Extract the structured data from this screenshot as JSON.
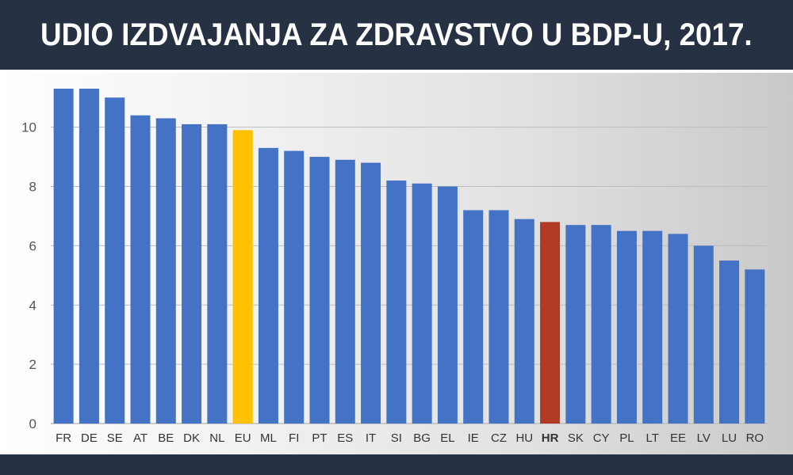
{
  "title": "UDIO IZDVAJANJA ZA ZDRAVSTVO U BDP-U, 2017.",
  "colors": {
    "default_bar": "#4472c4",
    "eu_bar": "#ffc000",
    "hr_bar": "#b03a24",
    "gridline": "#bdbdbd"
  },
  "chart_data": {
    "type": "bar",
    "title": "UDIO IZDVAJANJA ZA ZDRAVSTVO U BDP-U, 2017.",
    "xlabel": "",
    "ylabel": "",
    "ylim": [
      0,
      11.4
    ],
    "yticks": [
      0,
      2,
      4,
      6,
      8,
      10
    ],
    "grid": true,
    "legend": "none",
    "categories": [
      "FR",
      "DE",
      "SE",
      "AT",
      "BE",
      "DK",
      "NL",
      "EU",
      "ML",
      "FI",
      "PT",
      "ES",
      "IT",
      "SI",
      "BG",
      "EL",
      "IE",
      "CZ",
      "HU",
      "HR",
      "SK",
      "CY",
      "PL",
      "LT",
      "EE",
      "LV",
      "LU",
      "RO"
    ],
    "values": [
      11.3,
      11.3,
      11.0,
      10.4,
      10.3,
      10.1,
      10.1,
      9.9,
      9.3,
      9.2,
      9.0,
      8.9,
      8.8,
      8.2,
      8.1,
      8.0,
      7.2,
      7.2,
      6.9,
      6.8,
      6.7,
      6.7,
      6.5,
      6.5,
      6.4,
      6.0,
      5.5,
      5.2
    ],
    "highlight": {
      "EU": "#ffc000",
      "HR": "#b03a24"
    },
    "bold_labels": [
      "HR"
    ]
  }
}
